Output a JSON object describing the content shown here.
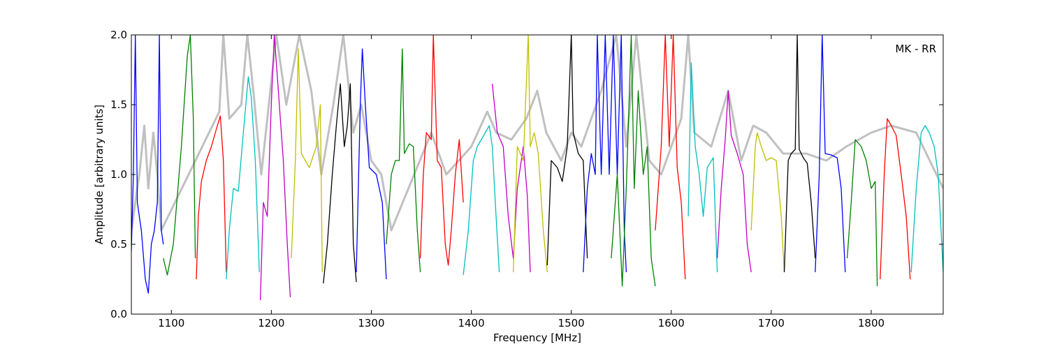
{
  "chart_data": {
    "type": "line",
    "xlabel": "Frequency [MHz]",
    "ylabel": "Amplitude [arbitrary units]",
    "annotation": "MK - RR",
    "xlim": [
      1060,
      1872
    ],
    "ylim": [
      0,
      2.0
    ],
    "xticks": [
      1100,
      1200,
      1300,
      1400,
      1500,
      1600,
      1700,
      1800
    ],
    "yticks": [
      0.0,
      0.5,
      1.0,
      1.5,
      2.0
    ],
    "xtick_labels": [
      "1100",
      "1200",
      "1300",
      "1400",
      "1500",
      "1600",
      "1700",
      "1800"
    ],
    "ytick_labels": [
      "0.0",
      "0.5",
      "1.0",
      "1.5",
      "2.0"
    ],
    "grid": false,
    "background_series": {
      "color": "#c0c0c0",
      "points": [
        [
          1060,
          0.6
        ],
        [
          1068,
          1.0
        ],
        [
          1073,
          1.35
        ],
        [
          1077,
          0.9
        ],
        [
          1082,
          1.3
        ],
        [
          1086,
          1.0
        ],
        [
          1090,
          0.6
        ],
        [
          1148,
          1.45
        ],
        [
          1152,
          2.0
        ],
        [
          1158,
          1.4
        ],
        [
          1170,
          1.5
        ],
        [
          1176,
          2.0
        ],
        [
          1182,
          1.6
        ],
        [
          1190,
          1.0
        ],
        [
          1205,
          2.0
        ],
        [
          1215,
          1.5
        ],
        [
          1228,
          2.0
        ],
        [
          1240,
          1.6
        ],
        [
          1250,
          1.0
        ],
        [
          1262,
          1.5
        ],
        [
          1272,
          2.0
        ],
        [
          1282,
          1.3
        ],
        [
          1290,
          1.5
        ],
        [
          1300,
          1.1
        ],
        [
          1310,
          1.0
        ],
        [
          1320,
          0.6
        ],
        [
          1360,
          1.3
        ],
        [
          1375,
          1.0
        ],
        [
          1400,
          1.2
        ],
        [
          1416,
          1.45
        ],
        [
          1425,
          1.3
        ],
        [
          1440,
          1.25
        ],
        [
          1455,
          1.4
        ],
        [
          1466,
          1.6
        ],
        [
          1475,
          1.3
        ],
        [
          1490,
          1.1
        ],
        [
          1500,
          1.3
        ],
        [
          1510,
          1.2
        ],
        [
          1520,
          1.4
        ],
        [
          1530,
          1.6
        ],
        [
          1545,
          2.0
        ],
        [
          1555,
          1.2
        ],
        [
          1565,
          2.0
        ],
        [
          1578,
          1.1
        ],
        [
          1590,
          1.0
        ],
        [
          1600,
          1.2
        ],
        [
          1610,
          1.4
        ],
        [
          1617,
          2.0
        ],
        [
          1623,
          1.3
        ],
        [
          1640,
          1.2
        ],
        [
          1657,
          1.6
        ],
        [
          1670,
          1.1
        ],
        [
          1682,
          1.35
        ],
        [
          1695,
          1.3
        ],
        [
          1712,
          1.15
        ],
        [
          1735,
          1.15
        ],
        [
          1755,
          1.1
        ],
        [
          1775,
          1.2
        ],
        [
          1800,
          1.3
        ],
        [
          1820,
          1.35
        ],
        [
          1845,
          1.3
        ],
        [
          1872,
          0.9
        ]
      ]
    },
    "series": [
      {
        "color": "#0000ff",
        "points": [
          [
            1060,
            0.45
          ],
          [
            1062,
            1.0
          ],
          [
            1064,
            2.0
          ],
          [
            1066,
            0.8
          ],
          [
            1070,
            0.6
          ],
          [
            1074,
            0.25
          ],
          [
            1077,
            0.15
          ],
          [
            1080,
            0.5
          ],
          [
            1083,
            0.6
          ],
          [
            1086,
            0.8
          ],
          [
            1088,
            2.0
          ],
          [
            1090,
            0.6
          ],
          [
            1092,
            0.5
          ]
        ]
      },
      {
        "color": "#008000",
        "points": [
          [
            1092,
            0.4
          ],
          [
            1096,
            0.28
          ],
          [
            1102,
            0.5
          ],
          [
            1110,
            1.2
          ],
          [
            1116,
            1.85
          ],
          [
            1119,
            2.0
          ],
          [
            1122,
            1.4
          ],
          [
            1124,
            0.4
          ]
        ]
      },
      {
        "color": "#ff0000",
        "points": [
          [
            1125,
            0.25
          ],
          [
            1127,
            0.7
          ],
          [
            1130,
            0.95
          ],
          [
            1135,
            1.1
          ],
          [
            1140,
            1.2
          ],
          [
            1146,
            1.35
          ],
          [
            1149,
            1.42
          ],
          [
            1152,
            1.1
          ],
          [
            1155,
            0.3
          ]
        ]
      },
      {
        "color": "#00bfbf",
        "points": [
          [
            1155,
            0.25
          ],
          [
            1158,
            0.6
          ],
          [
            1162,
            0.9
          ],
          [
            1167,
            0.88
          ],
          [
            1172,
            1.3
          ],
          [
            1177,
            1.7
          ],
          [
            1180,
            1.55
          ],
          [
            1184,
            1.1
          ],
          [
            1188,
            0.3
          ]
        ]
      },
      {
        "color": "#bf00bf",
        "points": [
          [
            1189,
            0.1
          ],
          [
            1192,
            0.8
          ],
          [
            1196,
            0.7
          ],
          [
            1200,
            1.5
          ],
          [
            1203,
            2.0
          ],
          [
            1207,
            1.6
          ],
          [
            1212,
            1.1
          ],
          [
            1216,
            0.5
          ],
          [
            1219,
            0.12
          ]
        ]
      },
      {
        "color": "#bfbf00",
        "points": [
          [
            1220,
            0.4
          ],
          [
            1224,
            1.1
          ],
          [
            1227,
            1.9
          ],
          [
            1230,
            1.15
          ],
          [
            1238,
            1.05
          ],
          [
            1245,
            1.2
          ],
          [
            1249,
            1.5
          ],
          [
            1251,
            0.3
          ]
        ]
      },
      {
        "color": "#000000",
        "points": [
          [
            1252,
            0.22
          ],
          [
            1256,
            0.5
          ],
          [
            1261,
            1.0
          ],
          [
            1265,
            1.35
          ],
          [
            1269,
            1.65
          ],
          [
            1273,
            1.2
          ],
          [
            1276,
            1.35
          ],
          [
            1279,
            1.65
          ],
          [
            1282,
            0.5
          ],
          [
            1285,
            0.23
          ]
        ]
      },
      {
        "color": "#0000ff",
        "points": [
          [
            1285,
            0.3
          ],
          [
            1289,
            1.5
          ],
          [
            1291,
            1.9
          ],
          [
            1294,
            1.5
          ],
          [
            1298,
            1.05
          ],
          [
            1305,
            1.0
          ],
          [
            1311,
            0.8
          ],
          [
            1315,
            0.25
          ]
        ]
      },
      {
        "color": "#008000",
        "points": [
          [
            1315,
            0.5
          ],
          [
            1320,
            1.0
          ],
          [
            1324,
            1.1
          ],
          [
            1328,
            1.1
          ],
          [
            1331,
            1.9
          ],
          [
            1333,
            1.15
          ],
          [
            1338,
            1.22
          ],
          [
            1342,
            1.2
          ],
          [
            1346,
            0.6
          ],
          [
            1349,
            0.3
          ]
        ]
      },
      {
        "color": "#ff0000",
        "points": [
          [
            1349,
            0.4
          ],
          [
            1352,
            1.0
          ],
          [
            1355,
            1.3
          ],
          [
            1360,
            1.25
          ],
          [
            1362,
            2.0
          ],
          [
            1366,
            1.1
          ],
          [
            1370,
            1.05
          ],
          [
            1374,
            0.5
          ],
          [
            1377,
            0.35
          ],
          [
            1380,
            0.6
          ],
          [
            1384,
            1.0
          ],
          [
            1388,
            1.25
          ],
          [
            1392,
            0.8
          ]
        ]
      },
      {
        "color": "#00bfbf",
        "points": [
          [
            1392,
            0.28
          ],
          [
            1397,
            0.6
          ],
          [
            1402,
            1.1
          ],
          [
            1406,
            1.2
          ],
          [
            1410,
            1.25
          ],
          [
            1414,
            1.3
          ],
          [
            1418,
            1.35
          ],
          [
            1421,
            1.2
          ],
          [
            1424,
            0.8
          ],
          [
            1428,
            0.3
          ]
        ]
      },
      {
        "color": "#bf00bf",
        "points": [
          [
            1421,
            1.65
          ],
          [
            1426,
            1.3
          ],
          [
            1432,
            1.2
          ],
          [
            1437,
            0.7
          ],
          [
            1442,
            0.4
          ],
          [
            1446,
            0.9
          ],
          [
            1452,
            1.2
          ],
          [
            1456,
            0.85
          ],
          [
            1459,
            0.3
          ]
        ]
      },
      {
        "color": "#bfbf00",
        "points": [
          [
            1442,
            0.3
          ],
          [
            1446,
            1.2
          ],
          [
            1452,
            1.1
          ],
          [
            1457,
            2.0
          ],
          [
            1459,
            1.2
          ],
          [
            1463,
            1.3
          ],
          [
            1467,
            1.15
          ],
          [
            1472,
            0.6
          ],
          [
            1476,
            0.3
          ]
        ]
      },
      {
        "color": "#000000",
        "points": [
          [
            1476,
            0.35
          ],
          [
            1480,
            1.1
          ],
          [
            1486,
            1.05
          ],
          [
            1491,
            0.95
          ],
          [
            1496,
            1.2
          ],
          [
            1500,
            2.0
          ],
          [
            1502,
            1.3
          ],
          [
            1507,
            1.15
          ],
          [
            1512,
            1.1
          ],
          [
            1516,
            0.4
          ]
        ]
      },
      {
        "color": "#0000ff",
        "points": [
          [
            1512,
            0.3
          ],
          [
            1516,
            0.9
          ],
          [
            1520,
            1.15
          ],
          [
            1524,
            1.0
          ],
          [
            1526,
            2.0
          ],
          [
            1530,
            1.0
          ],
          [
            1534,
            2.0
          ],
          [
            1538,
            1.0
          ],
          [
            1542,
            2.0
          ],
          [
            1546,
            1.0
          ],
          [
            1550,
            2.0
          ],
          [
            1553,
            0.6
          ],
          [
            1555,
            0.3
          ]
        ]
      },
      {
        "color": "#008000",
        "points": [
          [
            1540,
            0.4
          ],
          [
            1546,
            1.0
          ],
          [
            1551,
            0.2
          ],
          [
            1555,
            0.9
          ],
          [
            1560,
            2.0
          ],
          [
            1563,
            0.9
          ],
          [
            1567,
            1.6
          ],
          [
            1572,
            1.0
          ],
          [
            1576,
            1.2
          ],
          [
            1580,
            0.4
          ],
          [
            1584,
            0.2
          ]
        ]
      },
      {
        "color": "#ff0000",
        "points": [
          [
            1584,
            0.6
          ],
          [
            1590,
            1.2
          ],
          [
            1594,
            2.0
          ],
          [
            1598,
            1.2
          ],
          [
            1602,
            2.0
          ],
          [
            1606,
            1.05
          ],
          [
            1610,
            0.8
          ],
          [
            1614,
            0.25
          ]
        ]
      },
      {
        "color": "#00bfbf",
        "points": [
          [
            1617,
            0.7
          ],
          [
            1620,
            1.8
          ],
          [
            1624,
            1.2
          ],
          [
            1628,
            1.0
          ],
          [
            1632,
            0.7
          ],
          [
            1636,
            1.05
          ],
          [
            1642,
            1.12
          ],
          [
            1646,
            0.3
          ]
        ]
      },
      {
        "color": "#bf00bf",
        "points": [
          [
            1646,
            0.4
          ],
          [
            1650,
            0.9
          ],
          [
            1654,
            1.25
          ],
          [
            1657,
            1.6
          ],
          [
            1660,
            1.28
          ],
          [
            1666,
            1.15
          ],
          [
            1672,
            1.0
          ],
          [
            1676,
            0.5
          ],
          [
            1680,
            0.3
          ]
        ]
      },
      {
        "color": "#bfbf00",
        "points": [
          [
            1680,
            0.6
          ],
          [
            1684,
            1.2
          ],
          [
            1686,
            1.3
          ],
          [
            1690,
            1.2
          ],
          [
            1695,
            1.1
          ],
          [
            1700,
            1.12
          ],
          [
            1705,
            1.1
          ],
          [
            1710,
            0.7
          ],
          [
            1713,
            0.3
          ]
        ]
      },
      {
        "color": "#000000",
        "points": [
          [
            1713,
            0.3
          ],
          [
            1717,
            1.1
          ],
          [
            1720,
            1.15
          ],
          [
            1724,
            1.18
          ],
          [
            1726,
            2.0
          ],
          [
            1728,
            1.18
          ],
          [
            1732,
            1.12
          ],
          [
            1736,
            1.08
          ],
          [
            1740,
            0.8
          ],
          [
            1744,
            0.4
          ]
        ]
      },
      {
        "color": "#0000ff",
        "points": [
          [
            1744,
            0.3
          ],
          [
            1748,
            1.0
          ],
          [
            1751,
            2.0
          ],
          [
            1754,
            1.15
          ],
          [
            1760,
            1.14
          ],
          [
            1766,
            1.12
          ],
          [
            1770,
            0.9
          ],
          [
            1774,
            0.3
          ]
        ]
      },
      {
        "color": "#008000",
        "points": [
          [
            1776,
            0.4
          ],
          [
            1780,
            0.8
          ],
          [
            1784,
            1.25
          ],
          [
            1790,
            1.2
          ],
          [
            1795,
            1.1
          ],
          [
            1800,
            0.9
          ],
          [
            1804,
            0.95
          ],
          [
            1806,
            0.2
          ]
        ]
      },
      {
        "color": "#ff0000",
        "points": [
          [
            1809,
            0.25
          ],
          [
            1813,
            1.0
          ],
          [
            1816,
            1.4
          ],
          [
            1820,
            1.35
          ],
          [
            1825,
            1.28
          ],
          [
            1830,
            1.0
          ],
          [
            1835,
            0.7
          ],
          [
            1839,
            0.25
          ]
        ]
      },
      {
        "color": "#00bfbf",
        "points": [
          [
            1840,
            0.3
          ],
          [
            1845,
            0.9
          ],
          [
            1850,
            1.3
          ],
          [
            1854,
            1.35
          ],
          [
            1858,
            1.3
          ],
          [
            1863,
            1.2
          ],
          [
            1867,
            1.0
          ],
          [
            1872,
            0.3
          ]
        ]
      }
    ]
  }
}
